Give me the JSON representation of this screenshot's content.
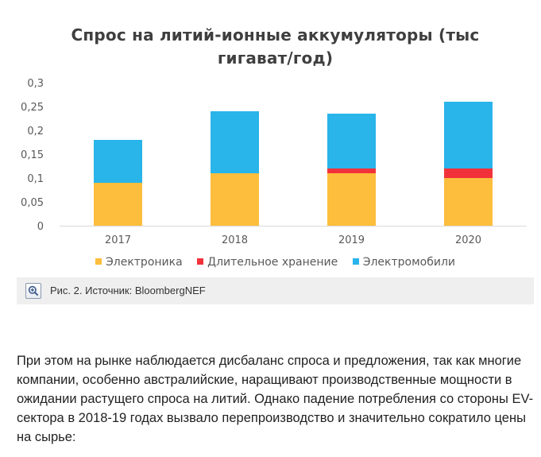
{
  "chart_data": {
    "type": "bar",
    "stacked": true,
    "title_lines": [
      "Спрос на литий-ионные аккумуляторы (тыс",
      "гигават/год)"
    ],
    "categories": [
      "2017",
      "2018",
      "2019",
      "2020"
    ],
    "series": [
      {
        "name": "Электроника",
        "color": "#FDBE3D",
        "values": [
          0.09,
          0.11,
          0.11,
          0.1
        ]
      },
      {
        "name": "Длительное хранение",
        "color": "#F2323A",
        "values": [
          0,
          0,
          0.01,
          0.02
        ]
      },
      {
        "name": "Электромобили",
        "color": "#29B4EA",
        "values": [
          0.09,
          0.13,
          0.115,
          0.14
        ]
      }
    ],
    "ylim": [
      0,
      0.3
    ],
    "yticks": [
      "0",
      "0,05",
      "0,1",
      "0,15",
      "0,2",
      "0,25",
      "0,3"
    ],
    "grid": false,
    "legend_position": "bottom"
  },
  "figure": {
    "caption": "Рис. 2. Источник: BloombergNEF",
    "zoom_icon": "zoom-in-icon"
  },
  "article": {
    "paragraph": "При этом на рынке наблюдается дисбаланс спроса и предложения, так как многие компании, особенно австралийские, наращивают производственные мощности в ожидании растущего спроса на литий. Однако падение потребления со стороны EV-сектора в 2018-19 годах вызвало перепроизводство и значительно сократило цены на сырье:"
  }
}
